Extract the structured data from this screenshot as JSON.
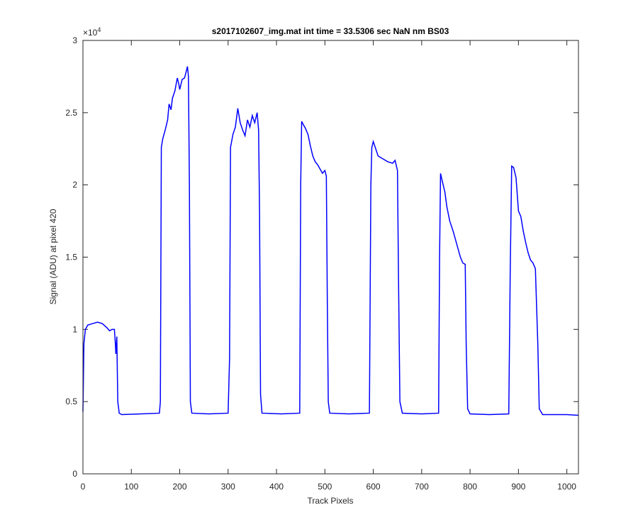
{
  "chart_data": {
    "type": "line",
    "title": "s2017102607_img.mat int time = 33.5306 sec  NaN nm BS03",
    "xlabel": "Track Pixels",
    "ylabel": "Signal (ADU) at pixel 420",
    "y_exponent_base": "×10",
    "y_exponent_power": "4",
    "xlim": [
      0,
      1024
    ],
    "ylim": [
      0,
      30000
    ],
    "xticks": [
      0,
      100,
      200,
      300,
      400,
      500,
      600,
      700,
      800,
      900,
      1000
    ],
    "yticks": [
      0,
      {
        "value": 5000,
        "label": "0.5"
      },
      {
        "value": 10000,
        "label": "1"
      },
      {
        "value": 15000,
        "label": "1.5"
      },
      {
        "value": 20000,
        "label": "2"
      },
      {
        "value": 25000,
        "label": "2.5"
      },
      {
        "value": 30000,
        "label": "3"
      }
    ],
    "series": [
      {
        "name": "signal",
        "color": "#0000ff",
        "x": [
          0,
          2,
          5,
          10,
          20,
          30,
          40,
          50,
          55,
          60,
          65,
          67,
          68,
          70,
          72,
          75,
          80,
          120,
          158,
          160,
          162,
          165,
          170,
          175,
          178,
          182,
          185,
          190,
          195,
          198,
          200,
          205,
          210,
          213,
          216,
          218,
          220,
          222,
          225,
          260,
          300,
          303,
          305,
          310,
          315,
          320,
          325,
          330,
          335,
          340,
          345,
          350,
          355,
          360,
          363,
          365,
          367,
          370,
          410,
          448,
          450,
          452,
          455,
          460,
          465,
          470,
          475,
          480,
          485,
          490,
          495,
          500,
          503,
          505,
          507,
          510,
          550,
          592,
          595,
          597,
          600,
          605,
          610,
          620,
          630,
          640,
          645,
          650,
          652,
          655,
          660,
          700,
          735,
          737,
          739,
          743,
          748,
          752,
          758,
          765,
          770,
          775,
          780,
          785,
          790,
          792,
          795,
          800,
          840,
          880,
          883,
          886,
          890,
          895,
          900,
          905,
          910,
          915,
          920,
          925,
          930,
          935,
          940,
          943,
          950,
          1000,
          1024
        ],
        "values": [
          4300,
          9000,
          10000,
          10300,
          10400,
          10500,
          10400,
          10100,
          9900,
          10000,
          10000,
          9000,
          8300,
          9500,
          5000,
          4200,
          4100,
          4150,
          4200,
          5000,
          22600,
          23200,
          23800,
          24500,
          25600,
          25200,
          26000,
          26500,
          27400,
          27000,
          26600,
          27300,
          27400,
          27800,
          28200,
          27500,
          20000,
          5000,
          4200,
          4150,
          4200,
          8000,
          22600,
          23500,
          24000,
          25300,
          24300,
          23800,
          23400,
          24500,
          24000,
          24800,
          24300,
          25000,
          23800,
          18000,
          5500,
          4200,
          4150,
          4200,
          20000,
          24400,
          24200,
          23900,
          23500,
          22700,
          22000,
          21600,
          21400,
          21100,
          20800,
          21000,
          20600,
          12000,
          5000,
          4200,
          4150,
          4200,
          20000,
          22600,
          23000,
          22500,
          22000,
          21800,
          21600,
          21500,
          21700,
          21000,
          14000,
          5000,
          4200,
          4150,
          4200,
          15000,
          20800,
          20200,
          19500,
          18500,
          17500,
          16800,
          16200,
          15600,
          15000,
          14600,
          14500,
          9000,
          4500,
          4150,
          4100,
          4150,
          14000,
          21300,
          21200,
          20500,
          18200,
          17800,
          16800,
          16000,
          15300,
          14800,
          14600,
          14200,
          9000,
          4500,
          4100,
          4100,
          4050
        ]
      }
    ]
  }
}
